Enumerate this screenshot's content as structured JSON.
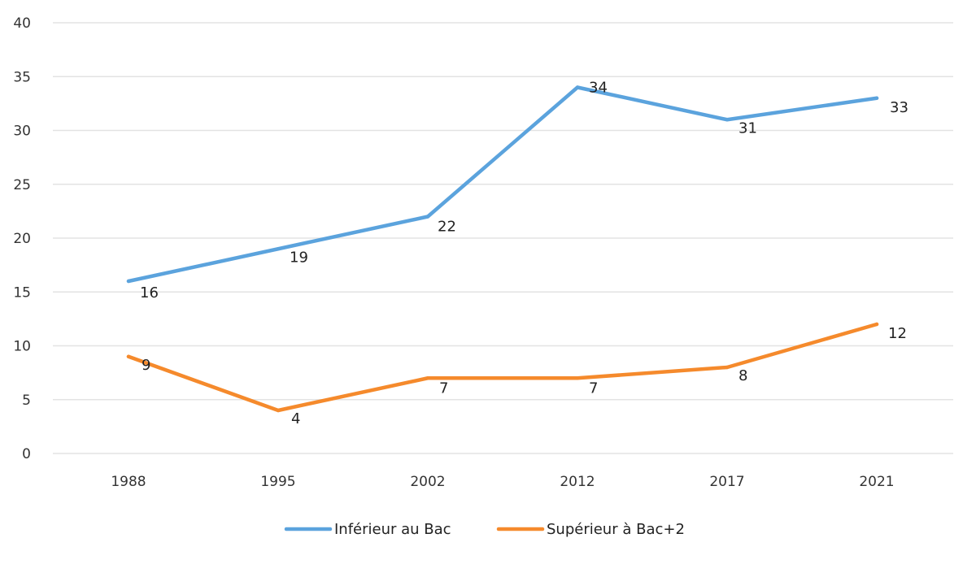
{
  "chart_data": {
    "type": "line",
    "categories": [
      "1988",
      "1995",
      "2002",
      "2012",
      "2017",
      "2021"
    ],
    "series": [
      {
        "name": "Inférieur au Bac",
        "color": "#5ba3dd",
        "values": [
          16,
          19,
          22,
          34,
          31,
          33
        ]
      },
      {
        "name": "Supérieur à Bac+2",
        "color": "#f58a2c",
        "values": [
          9,
          4,
          7,
          7,
          8,
          12
        ]
      }
    ],
    "ylim": [
      0,
      40
    ],
    "yticks": [
      0,
      5,
      10,
      15,
      20,
      25,
      30,
      35,
      40
    ],
    "grid": true,
    "legend_position": "bottom",
    "data_labels": true,
    "title": "",
    "xlabel": "",
    "ylabel": ""
  }
}
